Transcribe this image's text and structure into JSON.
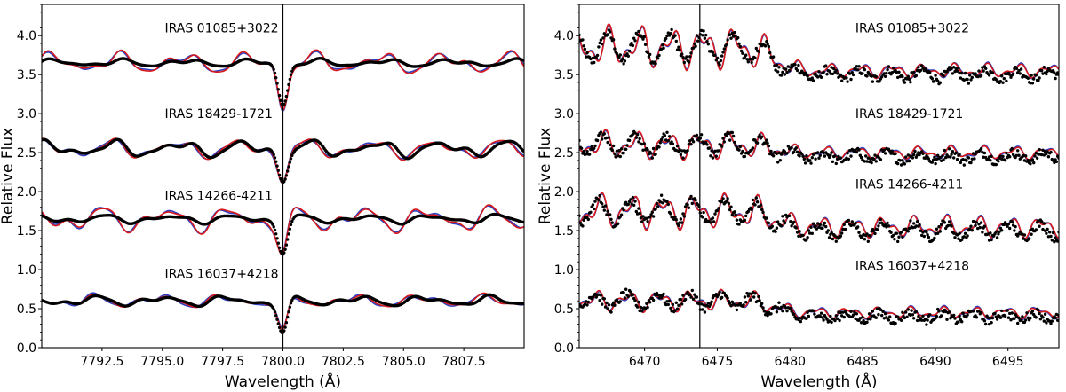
{
  "chart_data": [
    {
      "type": "line",
      "xlabel": "Wavelength (Å)",
      "ylabel": "Relative Flux",
      "xlim": [
        7790.0,
        7810.0
      ],
      "ylim": [
        0.0,
        4.4
      ],
      "xticks": [
        7792.5,
        7795.0,
        7797.5,
        7800.0,
        7802.5,
        7805.0,
        7807.5
      ],
      "xtick_labels": [
        "7792.5",
        "7795.0",
        "7797.5",
        "7800.0",
        "7802.5",
        "7805.0",
        "7807.5"
      ],
      "yticks": [
        0.0,
        0.5,
        1.0,
        1.5,
        2.0,
        2.5,
        3.0,
        3.5,
        4.0
      ],
      "ytick_labels": [
        "0.0",
        "0.5",
        "1.0",
        "1.5",
        "2.0",
        "2.5",
        "3.0",
        "3.5",
        "4.0"
      ],
      "vline": 7800.0,
      "annotations": [
        {
          "text": "IRAS 01085+3022",
          "x": 7795.1,
          "y": 4.1
        },
        {
          "text": "IRAS 18429-1721",
          "x": 7795.1,
          "y": 3.0
        },
        {
          "text": "IRAS 14266-4211",
          "x": 7795.1,
          "y": 1.95
        },
        {
          "text": "IRAS 16037+4218",
          "x": 7795.1,
          "y": 0.95
        }
      ],
      "spectra": [
        {
          "name": "IRAS 01085+3022",
          "baseline": 3.65,
          "line_depth": 0.52,
          "amp_obs": 0.06,
          "amp_model": 0.17,
          "phase": 0.3
        },
        {
          "name": "IRAS 18429-1721",
          "baseline": 2.55,
          "line_depth": 0.35,
          "amp_obs": 0.13,
          "amp_model": 0.15,
          "phase": 1.1
        },
        {
          "name": "IRAS 14266-4211",
          "baseline": 1.65,
          "line_depth": 0.42,
          "amp_obs": 0.07,
          "amp_model": 0.2,
          "phase": 2.0
        },
        {
          "name": "IRAS 16037+4218",
          "baseline": 0.6,
          "line_depth": 0.42,
          "amp_obs": 0.08,
          "amp_model": 0.1,
          "phase": 2.7
        }
      ],
      "series": [
        {
          "name": "observed",
          "style": "dots",
          "color": "#000000"
        },
        {
          "name": "model red",
          "style": "line",
          "color": "#d7191c"
        },
        {
          "name": "model blue",
          "style": "line",
          "color": "#2c3fbf"
        }
      ]
    },
    {
      "type": "line",
      "xlabel": "Wavelength (Å)",
      "ylabel": "Relative Flux",
      "xlim": [
        6465.5,
        6498.5
      ],
      "ylim": [
        0.0,
        4.4
      ],
      "xticks": [
        6470,
        6475,
        6480,
        6485,
        6490,
        6495
      ],
      "xtick_labels": [
        "6470",
        "6475",
        "6480",
        "6485",
        "6490",
        "6495"
      ],
      "yticks": [
        0.0,
        0.5,
        1.0,
        1.5,
        2.0,
        2.5,
        3.0,
        3.5,
        4.0
      ],
      "ytick_labels": [
        "0.0",
        "0.5",
        "1.0",
        "1.5",
        "2.0",
        "2.5",
        "3.0",
        "3.5",
        "4.0"
      ],
      "vline": 6473.8,
      "annotations": [
        {
          "text": "IRAS 01085+3022",
          "x": 6484.5,
          "y": 4.1
        },
        {
          "text": "IRAS 18429-1721",
          "x": 6484.5,
          "y": 3.0
        },
        {
          "text": "IRAS 14266-4211",
          "x": 6484.5,
          "y": 2.1
        },
        {
          "text": "IRAS 16037+4218",
          "x": 6484.5,
          "y": 1.05
        }
      ],
      "spectra": [
        {
          "name": "IRAS 01085+3022",
          "baseline": 3.55,
          "bump": 0.3,
          "amp_left": 0.3,
          "amp_right": 0.1,
          "phase": 0.5
        },
        {
          "name": "IRAS 18429-1721",
          "baseline": 2.5,
          "bump": 0.1,
          "amp_left": 0.2,
          "amp_right": 0.09,
          "phase": 1.3
        },
        {
          "name": "IRAS 14266-4211",
          "baseline": 1.55,
          "bump": 0.2,
          "amp_left": 0.25,
          "amp_right": 0.15,
          "phase": 2.2
        },
        {
          "name": "IRAS 16037+4218",
          "baseline": 0.45,
          "bump": 0.15,
          "amp_left": 0.15,
          "amp_right": 0.08,
          "phase": 3.0
        }
      ],
      "series": [
        {
          "name": "observed",
          "style": "dots",
          "color": "#000000"
        },
        {
          "name": "model red",
          "style": "line",
          "color": "#d7191c"
        },
        {
          "name": "model blue",
          "style": "line",
          "color": "#2c3fbf"
        }
      ]
    }
  ]
}
